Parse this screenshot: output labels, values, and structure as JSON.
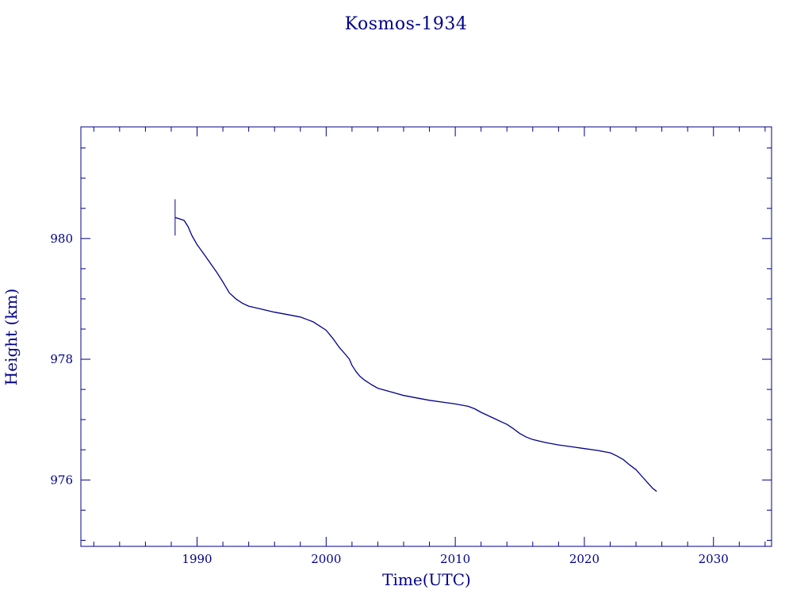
{
  "chart_data": {
    "type": "line",
    "title": "Kosmos-1934",
    "xlabel": "Time(UTC)",
    "ylabel": "Height (km)",
    "xlim": [
      1981.0,
      2034.5
    ],
    "ylim": [
      974.9,
      981.85
    ],
    "x_major_ticks": [
      1990,
      2000,
      2010,
      2020,
      2030
    ],
    "x_tick_labels": [
      "1990",
      "2000",
      "2010",
      "2020",
      "2030"
    ],
    "x_minor_step": 2,
    "y_major_ticks": [
      976,
      978,
      980
    ],
    "y_tick_labels": [
      "976",
      "978",
      "980"
    ],
    "y_minor_step": 0.5,
    "grid": false,
    "legend": "none",
    "color": "#00008b",
    "start_marker": {
      "x": 1988.3,
      "y_range": [
        980.05,
        980.65
      ]
    },
    "series": [
      {
        "x": [
          1988.3,
          1988.6,
          1989.0,
          1989.3,
          1989.6,
          1990.0,
          1990.5,
          1991.0,
          1991.5,
          1992.0,
          1992.5,
          1993.0,
          1993.5,
          1994.0,
          1995.0,
          1996.0,
          1997.0,
          1998.0,
          1998.5,
          1999.0,
          1999.5,
          2000.0,
          2000.5,
          2001.0,
          2001.5,
          2001.8,
          2002.0,
          2002.3,
          2002.6,
          2003.0,
          2003.5,
          2004.0,
          2005.0,
          2006.0,
          2007.0,
          2008.0,
          2009.0,
          2010.0,
          2011.0,
          2011.5,
          2012.0,
          2013.0,
          2014.0,
          2014.5,
          2015.0,
          2015.5,
          2016.0,
          2017.0,
          2018.0,
          2019.0,
          2020.0,
          2021.0,
          2022.0,
          2022.5,
          2023.0,
          2023.5,
          2024.0,
          2024.5,
          2025.0,
          2025.3,
          2025.6
        ],
        "y": [
          980.35,
          980.33,
          980.3,
          980.2,
          980.05,
          979.9,
          979.75,
          979.6,
          979.45,
          979.28,
          979.1,
          979.0,
          978.93,
          978.88,
          978.83,
          978.78,
          978.74,
          978.7,
          978.66,
          978.62,
          978.55,
          978.48,
          978.35,
          978.2,
          978.08,
          978.0,
          977.9,
          977.8,
          977.72,
          977.65,
          977.58,
          977.52,
          977.46,
          977.4,
          977.36,
          977.32,
          977.29,
          977.26,
          977.22,
          977.18,
          977.12,
          977.02,
          976.92,
          976.85,
          976.77,
          976.71,
          976.67,
          976.62,
          976.58,
          976.55,
          976.52,
          976.49,
          976.45,
          976.4,
          976.34,
          976.25,
          976.17,
          976.05,
          975.93,
          975.86,
          975.81
        ]
      }
    ]
  }
}
